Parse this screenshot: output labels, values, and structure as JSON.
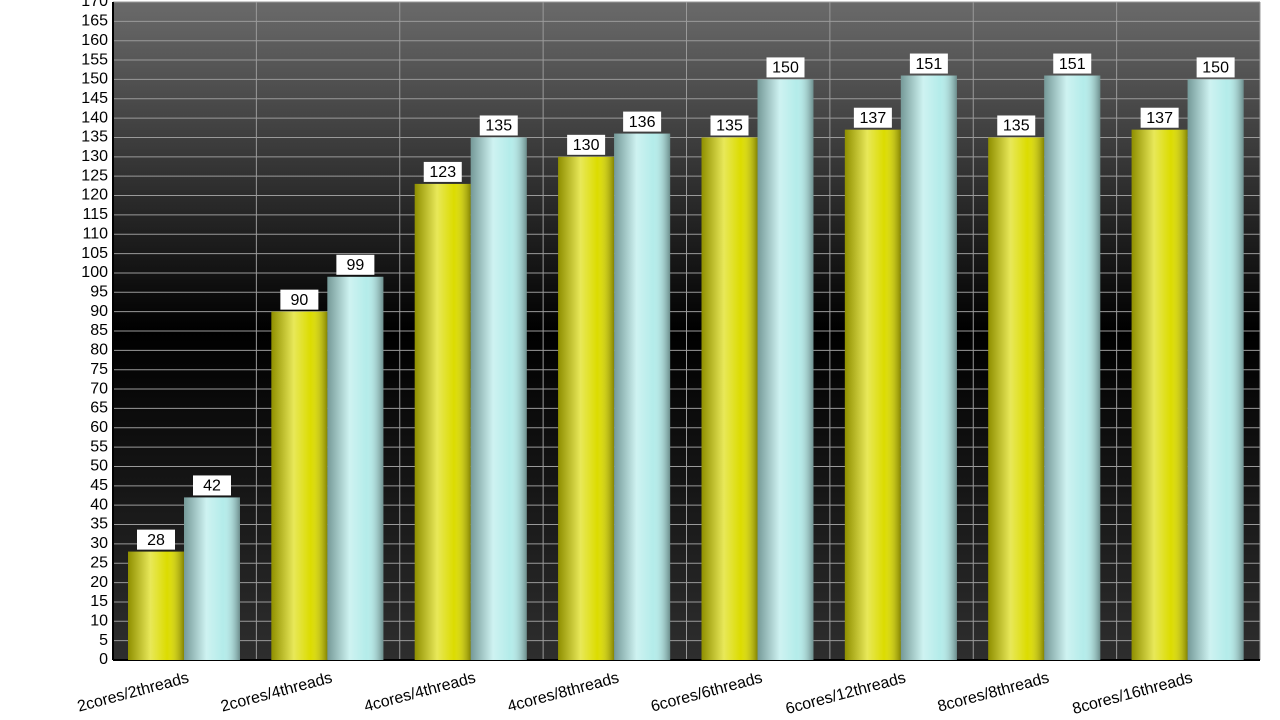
{
  "chart_data": {
    "type": "bar",
    "categories": [
      "2cores/2threads",
      "2cores/4threads",
      "4cores/4threads",
      "4cores/8threads",
      "6cores/6threads",
      "6cores/12threads",
      "8cores/8threads",
      "8cores/16threads"
    ],
    "series": [
      {
        "color": "#dcdc00",
        "values": [
          28,
          90,
          123,
          130,
          135,
          137,
          135,
          137
        ]
      },
      {
        "color": "#b4ecea",
        "values": [
          42,
          99,
          135,
          136,
          150,
          151,
          151,
          150
        ]
      }
    ],
    "ylim": [
      0,
      170
    ],
    "yticks": [
      0,
      5,
      10,
      15,
      20,
      25,
      30,
      35,
      40,
      45,
      50,
      55,
      60,
      65,
      70,
      75,
      80,
      85,
      90,
      95,
      100,
      105,
      110,
      115,
      120,
      125,
      130,
      135,
      140,
      145,
      150,
      155,
      160,
      165,
      170
    ],
    "grid": true
  }
}
